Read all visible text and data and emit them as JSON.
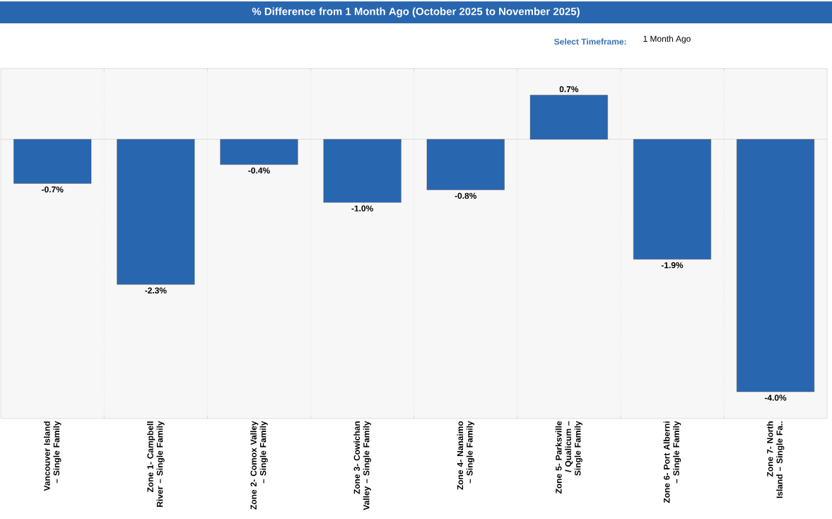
{
  "chart_data": {
    "type": "bar",
    "title": "% Difference from 1 Month Ago (October 2025 to November 2025)",
    "annotations": [
      "Select Timeframe:",
      "1 Month Ago"
    ],
    "categories": [
      "Vancouver Island – Single Family",
      "Zone 1- Campbell River – Single Family",
      "Zone 2- Comox Valley – Single Family",
      "Zone 3- Cowichan Valley – Single Family",
      "Zone 4- Nanaimo – Single Family",
      "Zone 5- Parksville / Qualicum – Single Family",
      "Zone 6- Port Alberni – Single Family",
      "Zone 7- North Island – Single Fa.."
    ],
    "values": [
      -0.7,
      -2.3,
      -0.4,
      -1.0,
      -0.8,
      0.7,
      -1.9,
      -4.0
    ],
    "value_labels": [
      "-0.7%",
      "-2.3%",
      "-0.4%",
      "-1.0%",
      "-0.8%",
      "0.7%",
      "-1.9%",
      "-4.0%"
    ],
    "color": "#2966b0",
    "grid": "x"
  }
}
